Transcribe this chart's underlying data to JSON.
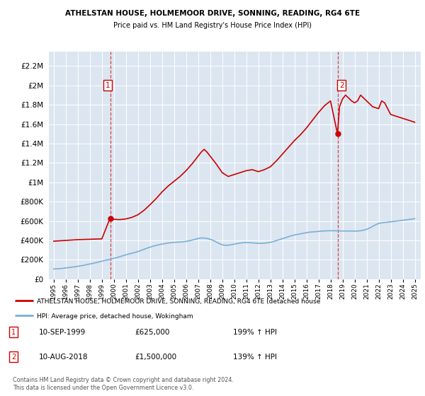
{
  "title": "ATHELSTAN HOUSE, HOLMEMOOR DRIVE, SONNING, READING, RG4 6TE",
  "subtitle": "Price paid vs. HM Land Registry's House Price Index (HPI)",
  "sale1_date": "10-SEP-1999",
  "sale1_price": 625000,
  "sale2_date": "10-AUG-2018",
  "sale2_price": 1500000,
  "legend_line1": "ATHELSTAN HOUSE, HOLMEMOOR DRIVE, SONNING, READING, RG4 6TE (detached house",
  "legend_line2": "HPI: Average price, detached house, Wokingham",
  "footer": "Contains HM Land Registry data © Crown copyright and database right 2024.\nThis data is licensed under the Open Government Licence v3.0.",
  "red_color": "#cc0000",
  "blue_color": "#7bafd4",
  "bg_color": "#dce6f1",
  "sale1_note": "199% ↑ HPI",
  "sale2_note": "139% ↑ HPI",
  "hpi_x": [
    1995.0,
    1995.25,
    1995.5,
    1995.75,
    1996.0,
    1996.25,
    1996.5,
    1996.75,
    1997.0,
    1997.25,
    1997.5,
    1997.75,
    1998.0,
    1998.25,
    1998.5,
    1998.75,
    1999.0,
    1999.25,
    1999.5,
    1999.75,
    2000.0,
    2000.25,
    2000.5,
    2000.75,
    2001.0,
    2001.25,
    2001.5,
    2001.75,
    2002.0,
    2002.25,
    2002.5,
    2002.75,
    2003.0,
    2003.25,
    2003.5,
    2003.75,
    2004.0,
    2004.25,
    2004.5,
    2004.75,
    2005.0,
    2005.25,
    2005.5,
    2005.75,
    2006.0,
    2006.25,
    2006.5,
    2006.75,
    2007.0,
    2007.25,
    2007.5,
    2007.75,
    2008.0,
    2008.25,
    2008.5,
    2008.75,
    2009.0,
    2009.25,
    2009.5,
    2009.75,
    2010.0,
    2010.25,
    2010.5,
    2010.75,
    2011.0,
    2011.25,
    2011.5,
    2011.75,
    2012.0,
    2012.25,
    2012.5,
    2012.75,
    2013.0,
    2013.25,
    2013.5,
    2013.75,
    2014.0,
    2014.25,
    2014.5,
    2014.75,
    2015.0,
    2015.25,
    2015.5,
    2015.75,
    2016.0,
    2016.25,
    2016.5,
    2016.75,
    2017.0,
    2017.25,
    2017.5,
    2017.75,
    2018.0,
    2018.25,
    2018.5,
    2018.75,
    2019.0,
    2019.25,
    2019.5,
    2019.75,
    2020.0,
    2020.25,
    2020.5,
    2020.75,
    2021.0,
    2021.25,
    2021.5,
    2021.75,
    2022.0,
    2022.25,
    2022.5,
    2022.75,
    2023.0,
    2023.25,
    2023.5,
    2023.75,
    2024.0,
    2024.25,
    2024.5,
    2024.75,
    2025.0
  ],
  "hpi_y": [
    105000,
    107000,
    109000,
    112000,
    116000,
    120000,
    124000,
    128000,
    133000,
    138000,
    143000,
    150000,
    157000,
    163000,
    170000,
    178000,
    186000,
    193000,
    200000,
    207000,
    215000,
    223000,
    232000,
    242000,
    252000,
    260000,
    268000,
    276000,
    285000,
    296000,
    308000,
    320000,
    330000,
    340000,
    348000,
    356000,
    362000,
    368000,
    373000,
    377000,
    380000,
    382000,
    384000,
    386000,
    390000,
    396000,
    403000,
    411000,
    420000,
    425000,
    425000,
    420000,
    412000,
    400000,
    385000,
    368000,
    355000,
    350000,
    350000,
    355000,
    362000,
    368000,
    373000,
    377000,
    378000,
    377000,
    375000,
    373000,
    370000,
    370000,
    372000,
    375000,
    380000,
    388000,
    398000,
    408000,
    418000,
    428000,
    438000,
    448000,
    456000,
    462000,
    468000,
    474000,
    480000,
    485000,
    488000,
    490000,
    493000,
    496000,
    498000,
    499000,
    500000,
    500000,
    499000,
    498000,
    497000,
    497000,
    497000,
    497000,
    496000,
    497000,
    500000,
    506000,
    515000,
    528000,
    545000,
    562000,
    575000,
    582000,
    585000,
    588000,
    592000,
    596000,
    600000,
    604000,
    608000,
    612000,
    616000,
    620000,
    624000
  ],
  "red_x": [
    1995.0,
    1995.5,
    1996.0,
    1996.5,
    1997.0,
    1997.5,
    1998.0,
    1998.5,
    1999.0,
    1999.67,
    2000.0,
    2000.5,
    2001.0,
    2001.5,
    2002.0,
    2002.5,
    2003.0,
    2003.5,
    2004.0,
    2004.5,
    2005.0,
    2005.5,
    2006.0,
    2006.5,
    2007.0,
    2007.25,
    2007.5,
    2007.75,
    2008.0,
    2008.5,
    2009.0,
    2009.5,
    2010.0,
    2010.5,
    2011.0,
    2011.5,
    2012.0,
    2012.5,
    2013.0,
    2013.5,
    2014.0,
    2014.5,
    2015.0,
    2015.5,
    2016.0,
    2016.5,
    2017.0,
    2017.5,
    2018.0,
    2018.58,
    2018.75,
    2019.0,
    2019.25,
    2019.5,
    2019.75,
    2020.0,
    2020.25,
    2020.5,
    2021.0,
    2021.5,
    2022.0,
    2022.25,
    2022.5,
    2022.75,
    2023.0,
    2023.5,
    2024.0,
    2024.5,
    2025.0
  ],
  "red_y": [
    392000,
    396000,
    400000,
    404000,
    408000,
    410000,
    412000,
    414000,
    416000,
    625000,
    618000,
    615000,
    622000,
    638000,
    665000,
    710000,
    768000,
    830000,
    900000,
    960000,
    1010000,
    1060000,
    1120000,
    1190000,
    1270000,
    1310000,
    1340000,
    1310000,
    1270000,
    1190000,
    1100000,
    1060000,
    1080000,
    1100000,
    1120000,
    1130000,
    1110000,
    1130000,
    1160000,
    1220000,
    1290000,
    1360000,
    1430000,
    1490000,
    1560000,
    1640000,
    1720000,
    1790000,
    1840000,
    1500000,
    1780000,
    1860000,
    1900000,
    1870000,
    1840000,
    1820000,
    1840000,
    1900000,
    1840000,
    1780000,
    1760000,
    1840000,
    1820000,
    1760000,
    1700000,
    1680000,
    1660000,
    1640000,
    1620000
  ]
}
